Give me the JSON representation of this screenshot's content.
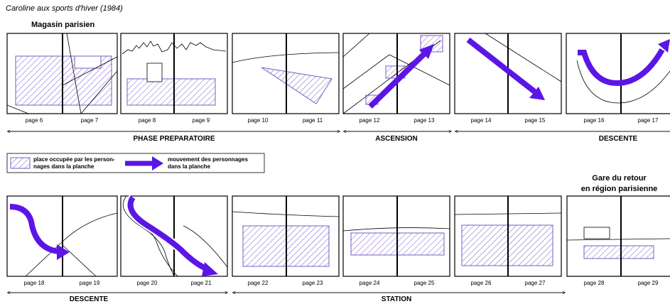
{
  "title": "Caroline aux sports d'hiver (1984)",
  "places": {
    "start": "Magasin parisien",
    "end_line1": "Gare du retour",
    "end_line2": "en région parisienne"
  },
  "legend": {
    "hatched_line1": "place occupée par les person-",
    "hatched_line2": "nages dans la planche",
    "arrow_line1": "mouvement des personnages",
    "arrow_line2": "dans la planche"
  },
  "phases": {
    "preparatoire": "PHASE PREPARATOIRE",
    "ascension": "ASCENSION",
    "descente_top": "DESCENTE",
    "descente_bottom": "DESCENTE",
    "station": "STATION"
  },
  "row1_pages": [
    [
      "page 6",
      "page 7"
    ],
    [
      "page 8",
      "page 9"
    ],
    [
      "page 10",
      "page 11"
    ],
    [
      "page 12",
      "page 13"
    ],
    [
      "page 14",
      "page 15"
    ],
    [
      "page 16",
      "page 17"
    ]
  ],
  "row2_pages": [
    [
      "page 18",
      "page 19"
    ],
    [
      "page 20",
      "page 21"
    ],
    [
      "page 22",
      "page 23"
    ],
    [
      "page 24",
      "page 25"
    ],
    [
      "page 26",
      "page 27"
    ],
    [
      "page 28",
      "page 29"
    ]
  ],
  "colors": {
    "hatch": "#7a5cc7",
    "arrow": "#5b16e6",
    "frame": "#000000"
  }
}
